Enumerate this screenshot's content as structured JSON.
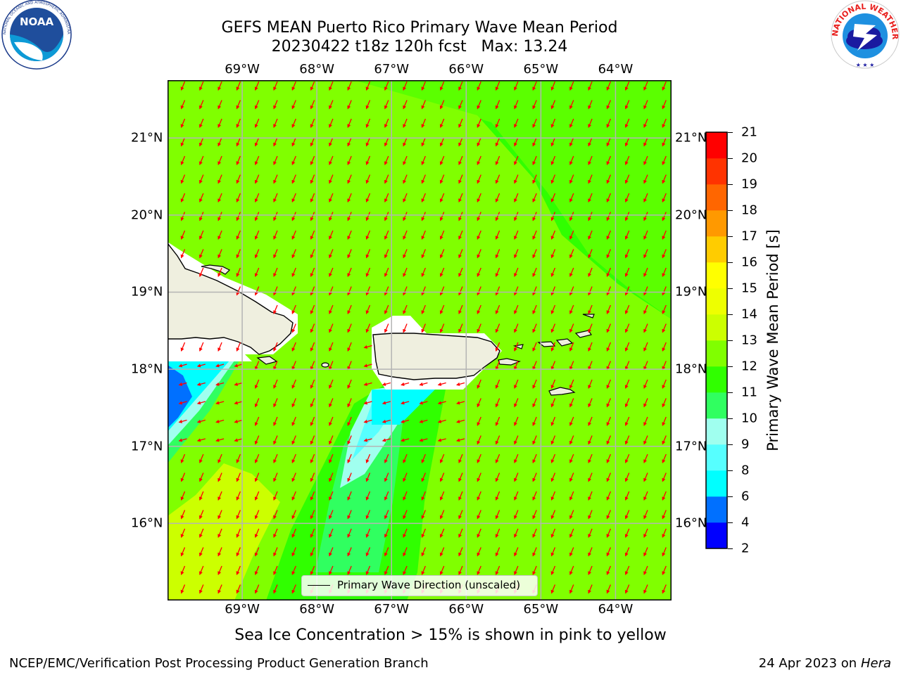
{
  "header": {
    "title_line1": "GEFS MEAN Puerto Rico Primary Wave Mean Period",
    "title_line2": "20230422 t18z 120h fcst   Max: 13.24"
  },
  "logos": {
    "noaa_text": "NOAA",
    "noaa_ring": "NATIONAL OCEANIC AND ATMOSPHERIC ADMINISTRATION · U.S. DEPARTMENT OF COMMERCE",
    "nws_ring": "NATIONAL WEATHER SERVICE"
  },
  "map": {
    "lon_labels": [
      "69°W",
      "68°W",
      "67°W",
      "66°W",
      "65°W",
      "64°W"
    ],
    "lat_labels": [
      "21°N",
      "20°N",
      "19°N",
      "18°N",
      "17°N",
      "16°N"
    ],
    "lon_values": [
      -69,
      -68,
      -67,
      -66,
      -65,
      -64
    ],
    "lat_values": [
      21,
      20,
      19,
      18,
      17,
      16
    ],
    "lon_range": [
      -70.0,
      -63.25
    ],
    "lat_range": [
      15.0,
      21.75
    ],
    "legend_label": "Primary Wave Direction (unscaled)",
    "arrow_color": "#ff0000",
    "land_color": "#efefdf"
  },
  "colorbar": {
    "label": "Primary Wave Mean Period [s]",
    "ticks": [
      "21",
      "20",
      "19",
      "18",
      "17",
      "16",
      "15",
      "14",
      "13",
      "12",
      "11",
      "10",
      "9",
      "8",
      "6",
      "4",
      "2"
    ],
    "colors": [
      "#0000ff",
      "#0070ff",
      "#00ffff",
      "#56ffff",
      "#a0ffef",
      "#30ff60",
      "#30ff00",
      "#80ff00",
      "#ccff00",
      "#eeff00",
      "#ffff00",
      "#ffcc00",
      "#ff9900",
      "#ff6600",
      "#ff3300",
      "#ff0000"
    ]
  },
  "caption": "Sea Ice Concentration > 15% is shown in pink to yellow",
  "footer": {
    "left": "NCEP/EMC/Verification Post Processing Product Generation Branch",
    "right_prefix": "24 Apr 2023 on ",
    "right_host": "Hera"
  }
}
